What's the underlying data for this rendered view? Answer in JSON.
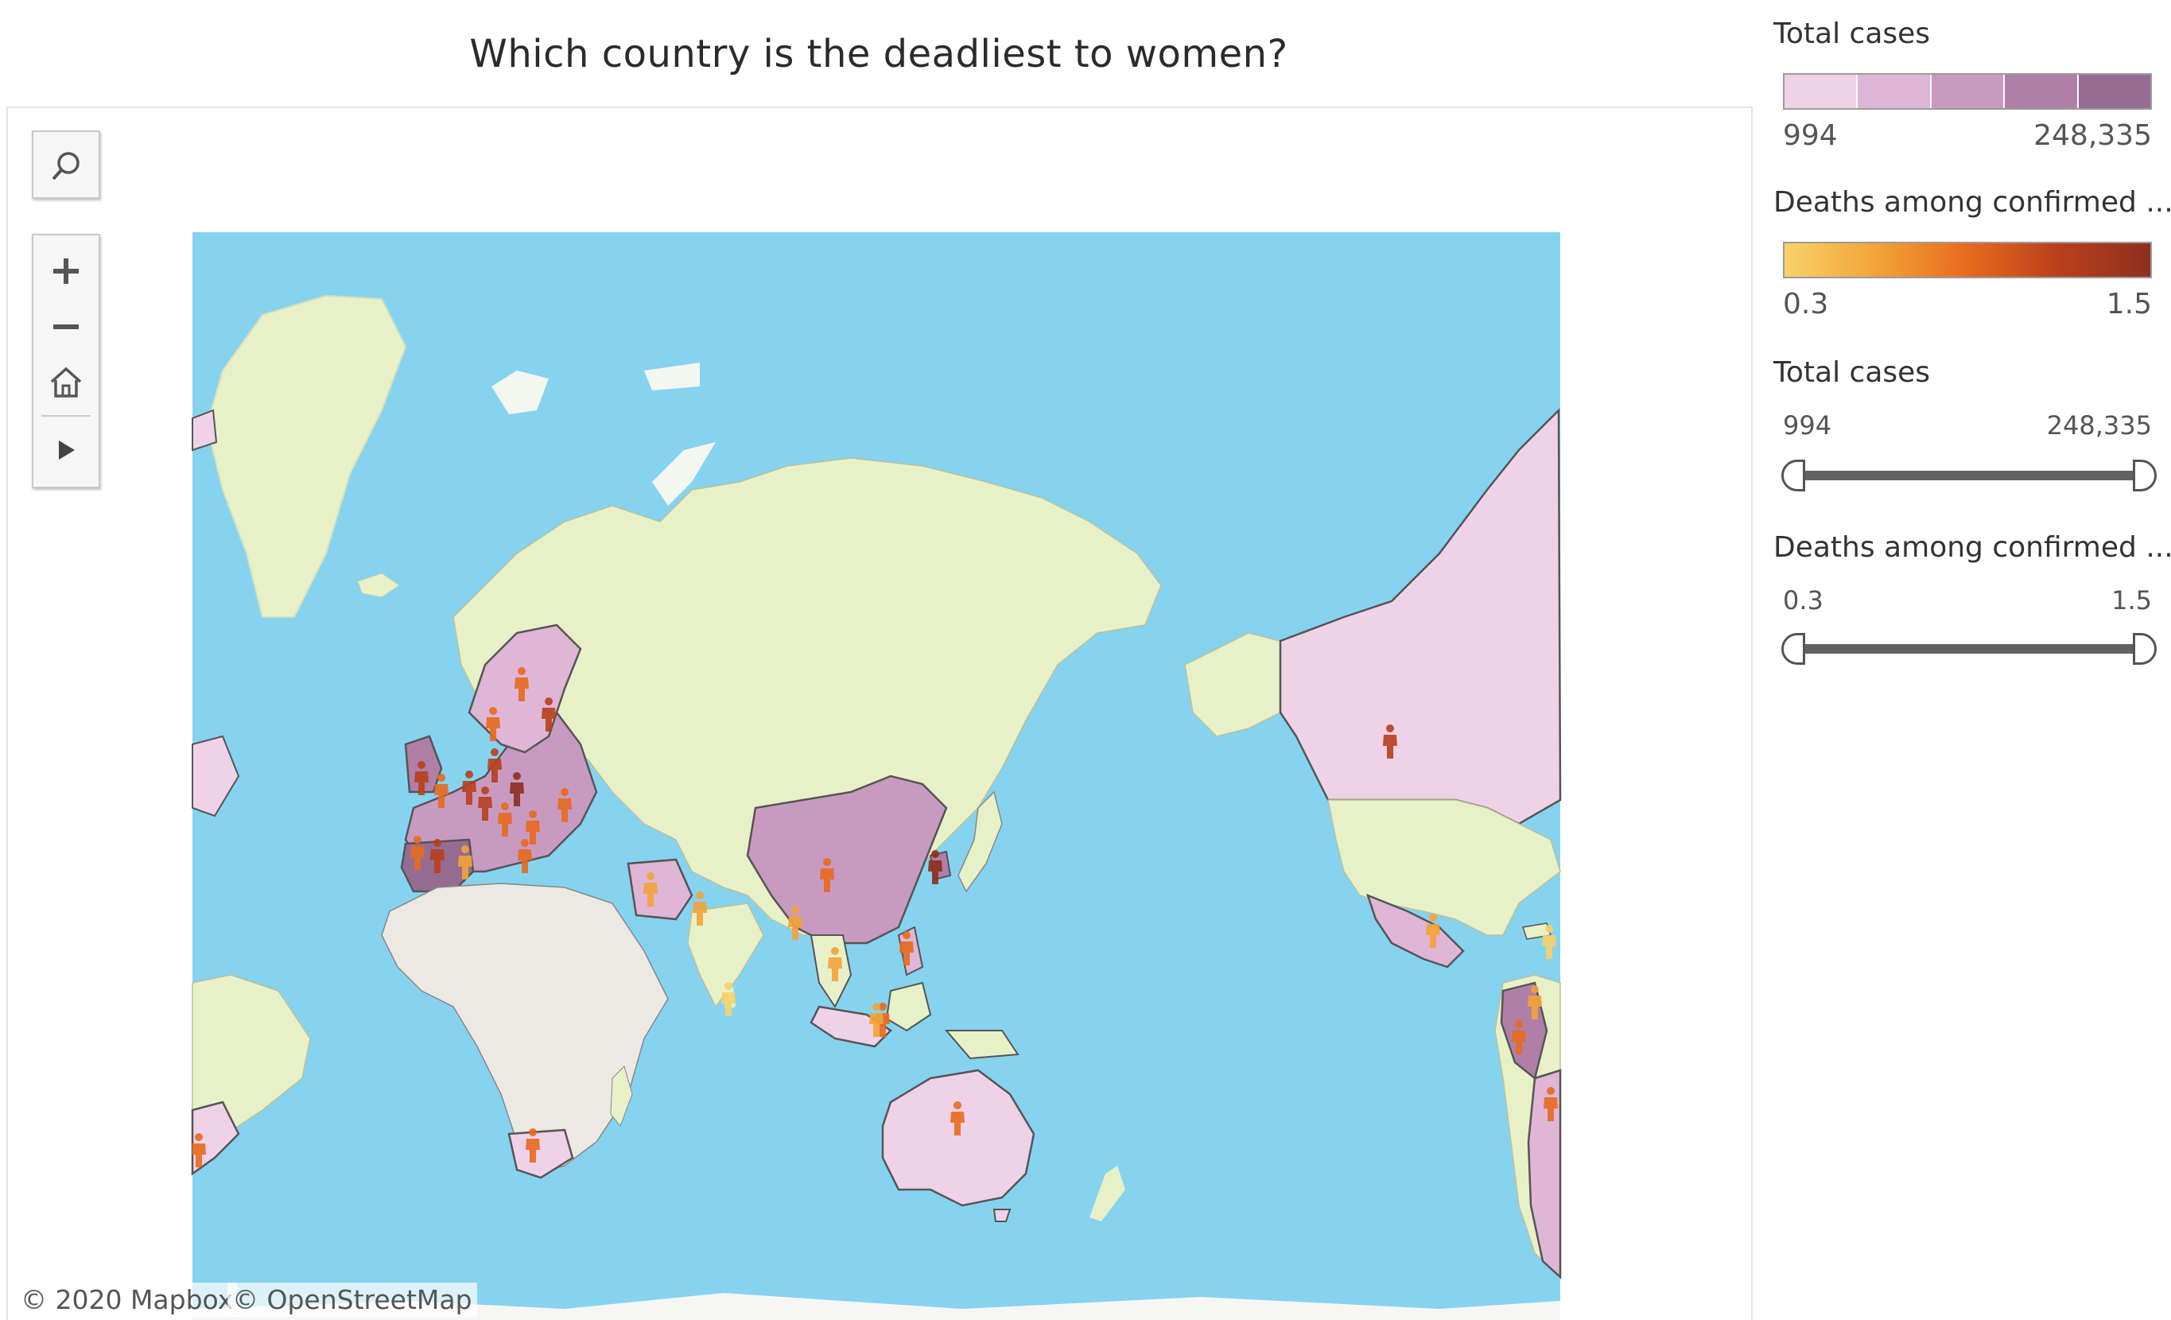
{
  "title": "Which country is the deadliest to women?",
  "map": {
    "attribution": [
      "© 2020 Mapbox",
      "© OpenStreetMap"
    ],
    "colors": {
      "ocean": "#86d3f0",
      "land_default": "#e8f0c8",
      "land_africa": "#ece9e3",
      "ice": "#f6f7f5",
      "country_border": "#555555"
    }
  },
  "toolbar": {
    "search_icon": "search-icon",
    "zoom_in_icon": "plus-icon",
    "zoom_out_icon": "minus-icon",
    "home_icon": "home-icon",
    "play_icon": "play-icon"
  },
  "legends": {
    "total_cases_color": {
      "title": "Total cases",
      "min": "994",
      "max": "248,335",
      "swatches": [
        "#f0d2e8",
        "#dfb6d6",
        "#c99ac0",
        "#b07fa8",
        "#966c93"
      ]
    },
    "deaths_color": {
      "title": "Deaths among confirmed ...",
      "min": "0.3",
      "max": "1.5",
      "gradient": [
        "#f7d26a",
        "#f3a33a",
        "#e86a1e",
        "#b8401c",
        "#8e2f1e"
      ]
    }
  },
  "filters": {
    "total_cases": {
      "title": "Total cases",
      "min": "994",
      "max": "248,335"
    },
    "deaths": {
      "title": "Deaths among confirmed ...",
      "min": "0.3",
      "max": "1.5"
    }
  }
}
